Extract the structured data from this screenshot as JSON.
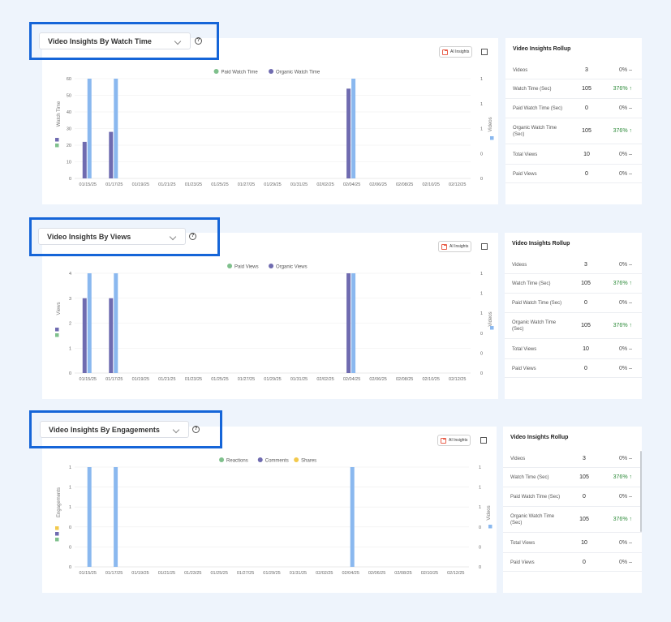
{
  "panels": [
    {
      "id": "watch",
      "dropdown_label": "Video Insights By Watch Time",
      "ai_label": "AI Insights",
      "legend": [
        {
          "label": "Paid Watch Time",
          "color": "#7fc08c"
        },
        {
          "label": "Organic Watch Time",
          "color": "#6f6bb0"
        }
      ],
      "left_axis_title": "Watch Time",
      "right_axis_title": "Videos",
      "left_ticks": [
        "0",
        "10",
        "20",
        "30",
        "40",
        "50",
        "60"
      ],
      "right_ticks": [
        "0",
        "0",
        "1",
        "1",
        "1"
      ],
      "side_swatches": [
        "#6f6bb0",
        "#7fc08c"
      ],
      "chart_data": {
        "type": "bar",
        "categories": [
          "01/15/25",
          "01/17/25",
          "01/19/25",
          "01/21/25",
          "01/23/25",
          "01/25/25",
          "01/27/25",
          "01/29/25",
          "01/31/25",
          "02/02/25",
          "02/04/25",
          "02/06/25",
          "02/08/25",
          "02/10/25",
          "02/12/25"
        ],
        "ylim": [
          0,
          60
        ],
        "y2lim": [
          0,
          1
        ],
        "series": [
          {
            "name": "Organic Watch Time",
            "color": "#6f6bb0",
            "axis": "left",
            "values": [
              22,
              28,
              0,
              0,
              0,
              0,
              0,
              0,
              0,
              0,
              54,
              0,
              0,
              0,
              0
            ]
          },
          {
            "name": "Videos",
            "color": "#8ab8ef",
            "axis": "right",
            "values": [
              1,
              1,
              0,
              0,
              0,
              0,
              0,
              0,
              0,
              0,
              1,
              0,
              0,
              0,
              0
            ]
          }
        ]
      }
    },
    {
      "id": "views",
      "dropdown_label": "Video Insights By Views",
      "ai_label": "AI Insights",
      "legend": [
        {
          "label": "Paid Views",
          "color": "#7fc08c"
        },
        {
          "label": "Organic Views",
          "color": "#6f6bb0"
        }
      ],
      "left_axis_title": "Views",
      "right_axis_title": "Videos",
      "left_ticks": [
        "0",
        "1",
        "2",
        "3",
        "4"
      ],
      "right_ticks": [
        "0",
        "0",
        "0",
        "1",
        "1",
        "1"
      ],
      "side_swatches": [
        "#6f6bb0",
        "#7fc08c"
      ],
      "chart_data": {
        "type": "bar",
        "categories": [
          "01/15/25",
          "01/17/25",
          "01/19/25",
          "01/21/25",
          "01/23/25",
          "01/25/25",
          "01/27/25",
          "01/29/25",
          "01/31/25",
          "02/02/25",
          "02/04/25",
          "02/06/25",
          "02/08/25",
          "02/10/25",
          "02/12/25"
        ],
        "ylim": [
          0,
          4
        ],
        "y2lim": [
          0,
          1
        ],
        "series": [
          {
            "name": "Organic Views",
            "color": "#6f6bb0",
            "axis": "left",
            "values": [
              3,
              3,
              0,
              0,
              0,
              0,
              0,
              0,
              0,
              0,
              4,
              0,
              0,
              0,
              0
            ]
          },
          {
            "name": "Videos",
            "color": "#8ab8ef",
            "axis": "right",
            "values": [
              1,
              1,
              0,
              0,
              0,
              0,
              0,
              0,
              0,
              0,
              1,
              0,
              0,
              0,
              0
            ]
          }
        ]
      }
    },
    {
      "id": "eng",
      "dropdown_label": "Video Insights By Engagements",
      "ai_label": "AI Insights",
      "legend": [
        {
          "label": "Reactions",
          "color": "#7fc08c"
        },
        {
          "label": "Comments",
          "color": "#6f6bb0"
        },
        {
          "label": "Shares",
          "color": "#f2c94c"
        }
      ],
      "left_axis_title": "Engagements",
      "right_axis_title": "Videos",
      "left_ticks": [
        "0",
        "0",
        "0",
        "1",
        "1",
        "1"
      ],
      "right_ticks": [
        "0",
        "0",
        "0",
        "1",
        "1",
        "1"
      ],
      "side_swatches": [
        "#f2c94c",
        "#6f6bb0",
        "#7fc08c"
      ],
      "chart_data": {
        "type": "bar",
        "categories": [
          "01/15/25",
          "01/17/25",
          "01/19/25",
          "01/21/25",
          "01/23/25",
          "01/25/25",
          "01/27/25",
          "01/29/25",
          "01/31/25",
          "02/02/25",
          "02/04/25",
          "02/06/25",
          "02/08/25",
          "02/10/25",
          "02/12/25"
        ],
        "ylim": [
          0,
          1
        ],
        "y2lim": [
          0,
          1
        ],
        "series": [
          {
            "name": "Videos",
            "color": "#8ab8ef",
            "axis": "right",
            "values": [
              1,
              1,
              0,
              0,
              0,
              0,
              0,
              0,
              0,
              0,
              1,
              0,
              0,
              0,
              0
            ]
          }
        ]
      }
    }
  ],
  "rollup": {
    "title": "Video Insights Rollup",
    "rows": [
      {
        "label": "Videos",
        "value": "3",
        "change": "0%",
        "trend": "flat"
      },
      {
        "label": "Watch Time (Sec)",
        "value": "105",
        "change": "376%",
        "trend": "up"
      },
      {
        "label": "Paid Watch Time (Sec)",
        "value": "0",
        "change": "0%",
        "trend": "flat"
      },
      {
        "label": "Organic Watch Time (Sec)",
        "value": "105",
        "change": "376%",
        "trend": "up"
      },
      {
        "label": "Total Views",
        "value": "10",
        "change": "0%",
        "trend": "flat"
      },
      {
        "label": "Paid Views",
        "value": "0",
        "change": "0%",
        "trend": "flat"
      }
    ]
  },
  "help_glyph": "?",
  "trend_glyphs": {
    "up": "↑",
    "flat": "–"
  }
}
